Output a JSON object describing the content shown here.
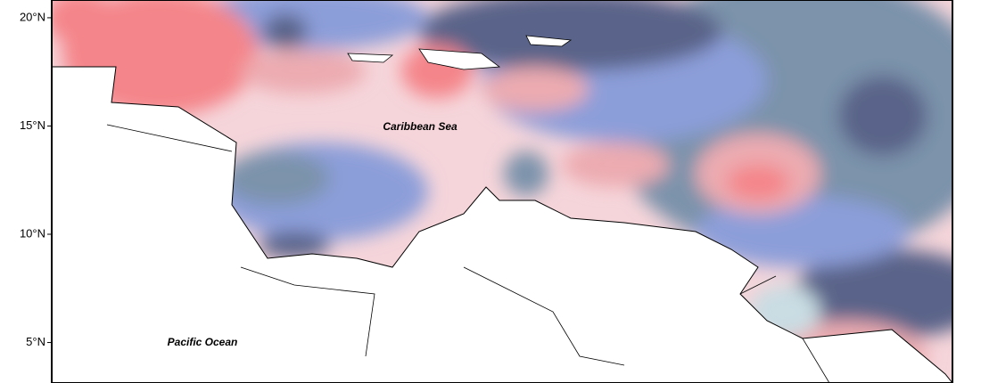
{
  "map": {
    "ylim": [
      3.13,
      20.82
    ],
    "lat_ticks": [
      {
        "value": 20,
        "label": "20°N"
      },
      {
        "value": 15,
        "label": "15°N"
      },
      {
        "value": 10,
        "label": "10°N"
      },
      {
        "value": 5,
        "label": "5°N"
      }
    ],
    "labels": [
      "Caribbean Sea",
      "Pacific Ocean"
    ]
  }
}
